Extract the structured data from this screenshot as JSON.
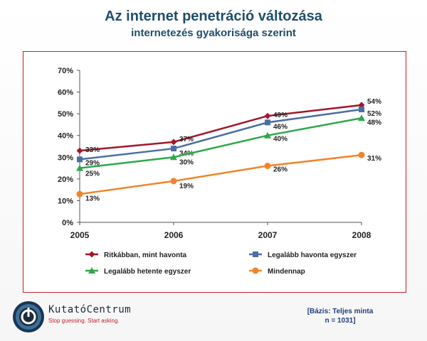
{
  "title": "Az internet penetráció változása",
  "subtitle": "internetezés gyakorisága szerint",
  "basis": {
    "line1": "[Bázis: Teljes minta",
    "line2": "n = 1031]"
  },
  "logo": {
    "name": "KutatóCentrum",
    "tagline": "Stop guessing. Start asking."
  },
  "colors": {
    "frame": "#c0202a",
    "title": "#1f4e6b"
  },
  "chart_data": {
    "type": "line",
    "x": [
      "2005",
      "2006",
      "2007",
      "2008"
    ],
    "ylim": [
      0,
      70
    ],
    "yticks": [
      "0%",
      "10%",
      "20%",
      "30%",
      "40%",
      "50%",
      "60%",
      "70%"
    ],
    "grid": false,
    "legend_position": "bottom",
    "series": [
      {
        "name": "Ritkábban, mint havonta",
        "values": [
          33,
          37,
          49,
          54
        ],
        "labels": [
          "33%",
          "37%",
          "49%",
          "54%"
        ],
        "color": "#a3162b",
        "marker": "diamond"
      },
      {
        "name": "Legalább havonta egyszer",
        "values": [
          29,
          34,
          46,
          52
        ],
        "labels": [
          "29%",
          "34%",
          "46%",
          "52%"
        ],
        "color": "#4a6fa5",
        "marker": "square"
      },
      {
        "name": "Legalább hetente egyszer",
        "values": [
          25,
          30,
          40,
          48
        ],
        "labels": [
          "25%",
          "30%",
          "40%",
          "48%"
        ],
        "color": "#2ea84a",
        "marker": "triangle"
      },
      {
        "name": "Mindennap",
        "values": [
          13,
          19,
          26,
          31
        ],
        "labels": [
          "13%",
          "19%",
          "26%",
          "31%"
        ],
        "color": "#f0842a",
        "marker": "circle"
      }
    ]
  }
}
